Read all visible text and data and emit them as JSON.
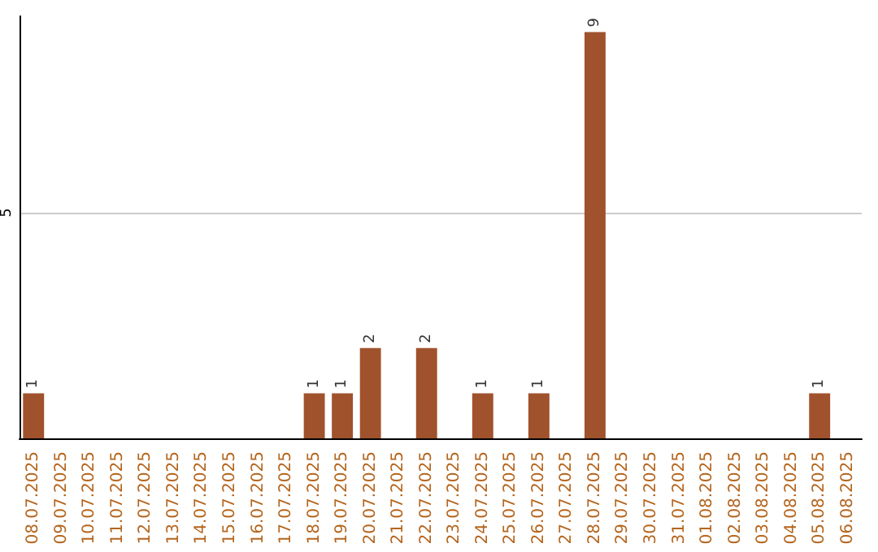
{
  "chart_data": {
    "type": "bar",
    "categories": [
      "08.07.2025",
      "09.07.2025",
      "10.07.2025",
      "11.07.2025",
      "12.07.2025",
      "13.07.2025",
      "14.07.2025",
      "15.07.2025",
      "16.07.2025",
      "17.07.2025",
      "18.07.2025",
      "19.07.2025",
      "20.07.2025",
      "21.07.2025",
      "22.07.2025",
      "23.07.2025",
      "24.07.2025",
      "25.07.2025",
      "26.07.2025",
      "27.07.2025",
      "28.07.2025",
      "29.07.2025",
      "30.07.2025",
      "31.07.2025",
      "01.08.2025",
      "02.08.2025",
      "03.08.2025",
      "04.08.2025",
      "05.08.2025",
      "06.08.2025"
    ],
    "values": [
      1,
      0,
      0,
      0,
      0,
      0,
      0,
      0,
      0,
      0,
      1,
      1,
      2,
      0,
      2,
      0,
      1,
      0,
      1,
      0,
      9,
      0,
      0,
      0,
      0,
      0,
      0,
      0,
      1,
      0
    ],
    "value_labels": [
      "1",
      null,
      null,
      null,
      null,
      null,
      null,
      null,
      null,
      null,
      "1",
      "1",
      "2",
      null,
      "2",
      null,
      "1",
      null,
      "1",
      null,
      "9",
      null,
      null,
      null,
      null,
      null,
      null,
      null,
      "1",
      null
    ],
    "color": "#a0522d",
    "ylim": [
      0,
      9.35
    ],
    "yticks": [
      5
    ],
    "grid": "y"
  }
}
